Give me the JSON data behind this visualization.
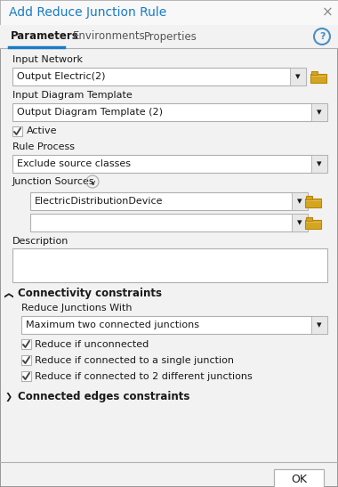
{
  "title": "Add Reduce Junction Rule",
  "tab_labels": [
    "Parameters",
    "Environments",
    "Properties"
  ],
  "bg_color": "#f2f2f2",
  "white": "#ffffff",
  "border_color": "#b0b0b0",
  "border_dark": "#888888",
  "blue_title": "#1a7bc4",
  "tab_underline": "#1a7bc4",
  "text_color": "#1a1a1a",
  "text_gray": "#555555",
  "fields": [
    {
      "label": "Input Network",
      "value": "Output Electric(2)",
      "has_folder": true
    },
    {
      "label": "Input Diagram Template",
      "value": "Output Diagram Template (2)",
      "has_folder": false
    }
  ],
  "active_label": "Active",
  "rule_process_label": "Rule Process",
  "rule_process_value": "Exclude source classes",
  "junction_sources_label": "Junction Sources",
  "junction_row1": "ElectricDistributionDevice",
  "junction_row2": "",
  "description_label": "Description",
  "connectivity_label": "Connectivity constraints",
  "reduce_junctions_label": "Reduce Junctions With",
  "reduce_junctions_value": "Maximum two connected junctions",
  "checkboxes": [
    "Reduce if unconnected",
    "Reduce if connected to a single junction",
    "Reduce if connected to 2 different junctions"
  ],
  "connected_edges_label": "Connected edges constraints",
  "ok_label": "OK",
  "folder_color": "#d4a520",
  "folder_border": "#b8860b",
  "check_color": "#444444",
  "help_color": "#4a90c4",
  "title_bar_color": "#f8f8f8"
}
